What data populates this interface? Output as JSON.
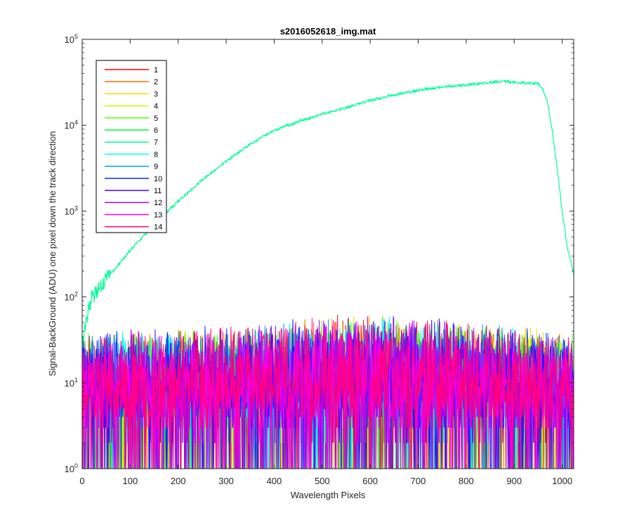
{
  "chart_data": {
    "type": "line",
    "title": "s2016052618_img.mat",
    "xlabel": "Wavelength Pixels",
    "ylabel": "Signal-BackGround (ADU) one pixel down the track direction",
    "xlim": [
      0,
      1024
    ],
    "ylim": [
      1,
      100000
    ],
    "yscale": "log",
    "x_ticks": [
      "0",
      "100",
      "200",
      "300",
      "400",
      "500",
      "600",
      "700",
      "800",
      "900",
      "1000"
    ],
    "y_ticks": [
      {
        "base": "10",
        "exp": "0"
      },
      {
        "base": "10",
        "exp": "1"
      },
      {
        "base": "10",
        "exp": "2"
      },
      {
        "base": "10",
        "exp": "3"
      },
      {
        "base": "10",
        "exp": "4"
      },
      {
        "base": "10",
        "exp": "5"
      }
    ],
    "grid": false,
    "legend_position": "top-left",
    "signal_series": "7",
    "signal_profile": {
      "x": [
        0,
        10,
        20,
        50,
        100,
        150,
        200,
        250,
        300,
        350,
        400,
        450,
        500,
        550,
        600,
        650,
        700,
        750,
        800,
        850,
        880,
        900,
        930,
        950,
        960,
        970,
        980,
        990,
        1000,
        1010,
        1024
      ],
      "y": [
        30,
        60,
        100,
        160,
        350,
        700,
        1300,
        2300,
        3800,
        6000,
        8700,
        11000,
        13500,
        16000,
        19500,
        22500,
        25500,
        28000,
        29500,
        31500,
        32500,
        31500,
        31000,
        30500,
        26000,
        18000,
        8000,
        3000,
        1000,
        400,
        180
      ]
    },
    "noise_envelope": {
      "x": [
        0,
        100,
        200,
        300,
        400,
        450,
        500,
        550,
        600,
        650,
        700,
        750,
        800,
        850,
        900,
        950,
        1024
      ],
      "peak": [
        40,
        45,
        45,
        48,
        52,
        58,
        62,
        65,
        63,
        62,
        60,
        58,
        55,
        52,
        48,
        45,
        40
      ]
    },
    "series": [
      {
        "name": "1",
        "color": "#ff0000"
      },
      {
        "name": "2",
        "color": "#ff6a00"
      },
      {
        "name": "3",
        "color": "#ffd400"
      },
      {
        "name": "4",
        "color": "#bfff00"
      },
      {
        "name": "5",
        "color": "#55ff00"
      },
      {
        "name": "6",
        "color": "#00ff2b"
      },
      {
        "name": "7",
        "color": "#00ff95"
      },
      {
        "name": "8",
        "color": "#00ffff"
      },
      {
        "name": "9",
        "color": "#0095ff"
      },
      {
        "name": "10",
        "color": "#002bff"
      },
      {
        "name": "11",
        "color": "#4000ff"
      },
      {
        "name": "12",
        "color": "#aa00ff"
      },
      {
        "name": "13",
        "color": "#ff00ea"
      },
      {
        "name": "14",
        "color": "#ff0080"
      }
    ]
  }
}
